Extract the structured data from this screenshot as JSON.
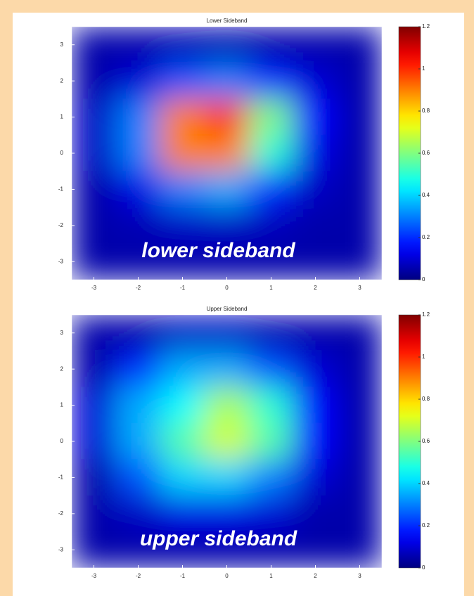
{
  "chart_data": [
    {
      "type": "heatmap",
      "title": "Lower Sideband",
      "annotation": "lower sideband",
      "colormap": "jet",
      "x": [
        -3,
        -2,
        -1,
        0,
        1,
        2,
        3
      ],
      "y": [
        3,
        2,
        1,
        0,
        -1,
        -2,
        -3
      ],
      "z": [
        [
          0.05,
          0.05,
          0.06,
          0.06,
          0.05,
          0.05,
          0.05
        ],
        [
          0.05,
          0.1,
          0.25,
          0.3,
          0.2,
          0.1,
          0.05
        ],
        [
          0.08,
          0.3,
          0.9,
          1.0,
          0.6,
          0.15,
          0.05
        ],
        [
          0.08,
          0.3,
          0.9,
          0.9,
          0.5,
          0.12,
          0.05
        ],
        [
          0.05,
          0.12,
          0.3,
          0.35,
          0.2,
          0.08,
          0.05
        ],
        [
          0.05,
          0.06,
          0.08,
          0.08,
          0.07,
          0.05,
          0.05
        ],
        [
          0.05,
          0.05,
          0.05,
          0.05,
          0.05,
          0.05,
          0.05
        ]
      ],
      "xlim": [
        -3.5,
        3.5
      ],
      "ylim": [
        -3.5,
        3.5
      ],
      "xticks": [
        -3,
        -2,
        -1,
        0,
        1,
        2,
        3
      ],
      "yticks": [
        -3,
        -2,
        -1,
        0,
        1,
        2,
        3
      ],
      "clim": [
        0,
        1.2
      ],
      "cticks": [
        0,
        0.2,
        0.4,
        0.6,
        0.8,
        1,
        1.2
      ]
    },
    {
      "type": "heatmap",
      "title": "Upper Sideband",
      "annotation": "upper sideband",
      "colormap": "jet",
      "x": [
        -3,
        -2,
        -1,
        0,
        1,
        2,
        3
      ],
      "y": [
        3,
        2,
        1,
        0,
        -1,
        -2,
        -3
      ],
      "z": [
        [
          0.05,
          0.05,
          0.08,
          0.08,
          0.06,
          0.05,
          0.05
        ],
        [
          0.05,
          0.2,
          0.35,
          0.35,
          0.25,
          0.1,
          0.05
        ],
        [
          0.1,
          0.35,
          0.45,
          0.65,
          0.5,
          0.15,
          0.05
        ],
        [
          0.1,
          0.35,
          0.55,
          0.7,
          0.55,
          0.15,
          0.05
        ],
        [
          0.05,
          0.25,
          0.4,
          0.4,
          0.3,
          0.1,
          0.05
        ],
        [
          0.05,
          0.08,
          0.12,
          0.12,
          0.1,
          0.05,
          0.05
        ],
        [
          0.05,
          0.05,
          0.05,
          0.05,
          0.05,
          0.05,
          0.05
        ]
      ],
      "xlim": [
        -3.5,
        3.5
      ],
      "ylim": [
        -3.5,
        3.5
      ],
      "xticks": [
        -3,
        -2,
        -1,
        0,
        1,
        2,
        3
      ],
      "yticks": [
        -3,
        -2,
        -1,
        0,
        1,
        2,
        3
      ],
      "clim": [
        0,
        1.2
      ],
      "cticks": [
        0,
        0.2,
        0.4,
        0.6,
        0.8,
        1,
        1.2
      ]
    }
  ]
}
